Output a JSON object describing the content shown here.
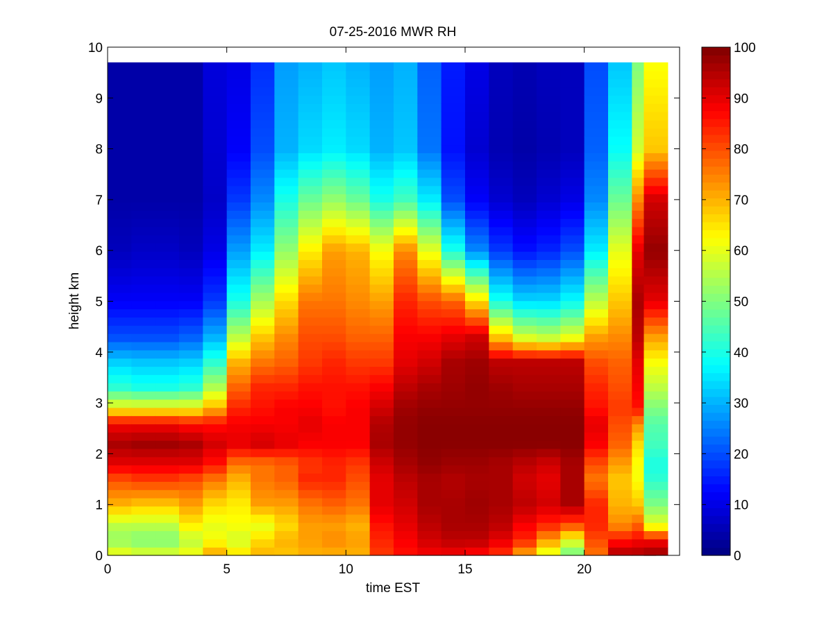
{
  "chart_data": {
    "type": "heatmap",
    "title": "07-25-2016 MWR RH",
    "xlabel": "time EST",
    "ylabel": "height km",
    "xlim": [
      0,
      24
    ],
    "ylim": [
      0,
      10
    ],
    "xticks": [
      0,
      5,
      10,
      15,
      20
    ],
    "yticks": [
      0,
      1,
      2,
      3,
      4,
      5,
      6,
      7,
      8,
      9,
      10
    ],
    "colorbar": {
      "colormap": "jet",
      "clim": [
        0,
        100
      ],
      "ticks": [
        0,
        10,
        20,
        30,
        40,
        50,
        60,
        70,
        80,
        90,
        100
      ]
    },
    "grid": false,
    "x_bin_width_hours": 1,
    "x": [
      0.5,
      1.5,
      2.5,
      3.5,
      4.5,
      5.5,
      6.5,
      7.5,
      8.5,
      9.5,
      10.5,
      11.5,
      12.5,
      13.5,
      14.5,
      15.5,
      16.5,
      17.5,
      18.5,
      19.5,
      20.5,
      21.5,
      22.5,
      23.0
    ],
    "profiles": [
      {
        "h": [
          0,
          0.3,
          0.6,
          1.0,
          1.5,
          1.8,
          2.2,
          2.6,
          2.9,
          3.3,
          3.8,
          4.3,
          5.0,
          6.0,
          7.0,
          8.0,
          9.7
        ],
        "rh": [
          62,
          52,
          56,
          70,
          80,
          90,
          96,
          88,
          62,
          42,
          33,
          20,
          12,
          6,
          4,
          4,
          4
        ]
      },
      {
        "h": [
          0,
          0.3,
          0.6,
          1.0,
          1.5,
          1.8,
          2.2,
          2.6,
          2.9,
          3.3,
          3.8,
          4.3,
          5.0,
          6.0,
          7.0,
          8.0,
          9.7
        ],
        "rh": [
          60,
          50,
          56,
          68,
          82,
          90,
          97,
          88,
          62,
          40,
          32,
          20,
          12,
          7,
          4,
          4,
          4
        ]
      },
      {
        "h": [
          0,
          0.3,
          0.6,
          1.0,
          1.5,
          1.8,
          2.2,
          2.6,
          2.9,
          3.3,
          3.8,
          4.3,
          5.0,
          6.0,
          7.0,
          8.0,
          9.7
        ],
        "rh": [
          60,
          50,
          56,
          68,
          82,
          90,
          97,
          88,
          62,
          40,
          32,
          20,
          12,
          7,
          4,
          4,
          4
        ]
      },
      {
        "h": [
          0,
          0.3,
          0.6,
          1.0,
          1.5,
          1.8,
          2.2,
          2.6,
          2.9,
          3.3,
          3.8,
          4.3,
          5.0,
          6.0,
          7.0,
          8.0,
          9.7
        ],
        "rh": [
          62,
          56,
          64,
          72,
          80,
          90,
          96,
          86,
          62,
          42,
          33,
          22,
          12,
          6,
          4,
          4,
          4
        ]
      },
      {
        "h": [
          0,
          0.3,
          0.6,
          1.0,
          1.5,
          1.8,
          2.2,
          2.6,
          2.9,
          3.3,
          3.8,
          4.3,
          5.0,
          6.0,
          7.0,
          8.0,
          9.7
        ],
        "rh": [
          72,
          62,
          60,
          66,
          76,
          86,
          92,
          86,
          70,
          55,
          42,
          30,
          18,
          10,
          7,
          8,
          9
        ]
      },
      {
        "h": [
          0,
          0.3,
          0.6,
          1.0,
          1.5,
          1.8,
          2.2,
          2.6,
          2.9,
          3.3,
          3.8,
          4.3,
          5.0,
          6.0,
          7.0,
          8.0,
          9.7
        ],
        "rh": [
          66,
          58,
          62,
          64,
          70,
          76,
          90,
          88,
          84,
          78,
          70,
          56,
          40,
          28,
          18,
          12,
          10
        ]
      },
      {
        "h": [
          0,
          0.3,
          0.6,
          1.0,
          1.5,
          1.8,
          2.2,
          2.6,
          2.9,
          3.3,
          3.8,
          4.3,
          5.0,
          6.0,
          7.0,
          8.0,
          9.7
        ],
        "rh": [
          70,
          66,
          60,
          72,
          76,
          76,
          92,
          88,
          86,
          84,
          76,
          68,
          54,
          36,
          26,
          20,
          17
        ]
      },
      {
        "h": [
          0,
          0.3,
          0.6,
          1.0,
          1.5,
          1.8,
          2.2,
          2.6,
          2.9,
          3.3,
          3.8,
          4.3,
          5.0,
          6.0,
          7.0,
          8.0,
          9.7
        ],
        "rh": [
          68,
          70,
          66,
          72,
          78,
          78,
          90,
          88,
          88,
          84,
          78,
          74,
          66,
          52,
          40,
          30,
          28
        ]
      },
      {
        "h": [
          0,
          0.3,
          0.6,
          1.0,
          1.5,
          1.8,
          2.2,
          2.6,
          2.9,
          3.3,
          3.8,
          4.3,
          5.0,
          6.0,
          7.0,
          8.0,
          9.7
        ],
        "rh": [
          70,
          72,
          72,
          76,
          84,
          82,
          88,
          90,
          88,
          86,
          82,
          80,
          76,
          64,
          48,
          34,
          30
        ]
      },
      {
        "h": [
          0,
          0.3,
          0.6,
          1.0,
          1.5,
          1.8,
          2.2,
          2.6,
          2.9,
          3.3,
          3.8,
          4.3,
          5.0,
          6.0,
          7.0,
          8.0,
          9.7
        ],
        "rh": [
          70,
          74,
          72,
          78,
          84,
          84,
          88,
          88,
          86,
          86,
          84,
          80,
          76,
          72,
          52,
          36,
          32
        ]
      },
      {
        "h": [
          0,
          0.3,
          0.6,
          1.0,
          1.5,
          1.8,
          2.2,
          2.6,
          2.9,
          3.3,
          3.8,
          4.3,
          5.0,
          6.0,
          7.0,
          8.0,
          9.7
        ],
        "rh": [
          70,
          72,
          70,
          76,
          80,
          82,
          88,
          88,
          88,
          86,
          82,
          78,
          74,
          70,
          48,
          34,
          30
        ]
      },
      {
        "h": [
          0,
          0.3,
          0.6,
          1.0,
          1.5,
          1.8,
          2.2,
          2.6,
          2.9,
          3.3,
          3.8,
          4.3,
          5.0,
          6.0,
          7.0,
          8.0,
          9.7
        ],
        "rh": [
          82,
          84,
          86,
          90,
          90,
          92,
          96,
          95,
          92,
          88,
          82,
          78,
          72,
          62,
          40,
          30,
          28
        ]
      },
      {
        "h": [
          0,
          0.3,
          0.6,
          1.0,
          1.5,
          1.8,
          2.2,
          2.6,
          2.9,
          3.3,
          3.8,
          4.3,
          5.0,
          6.0,
          7.0,
          8.0,
          9.7
        ],
        "rh": [
          86,
          88,
          90,
          92,
          94,
          96,
          98,
          98,
          97,
          94,
          90,
          88,
          84,
          74,
          44,
          32,
          30
        ]
      },
      {
        "h": [
          0,
          0.3,
          0.6,
          1.0,
          1.5,
          1.8,
          2.2,
          2.6,
          2.9,
          3.3,
          3.8,
          4.3,
          5.0,
          6.0,
          7.0,
          8.0,
          9.7
        ],
        "rh": [
          88,
          92,
          94,
          96,
          96,
          98,
          99,
          99,
          98,
          96,
          92,
          88,
          80,
          60,
          36,
          24,
          22
        ]
      },
      {
        "h": [
          0,
          0.3,
          0.6,
          1.0,
          1.5,
          1.8,
          2.2,
          2.6,
          2.9,
          3.3,
          3.8,
          4.3,
          5.0,
          6.0,
          7.0,
          8.0,
          9.7
        ],
        "rh": [
          88,
          94,
          96,
          96,
          95,
          97,
          99,
          99,
          98,
          97,
          96,
          90,
          78,
          40,
          20,
          14,
          15
        ]
      },
      {
        "h": [
          0,
          0.3,
          0.6,
          1.0,
          1.5,
          1.8,
          2.2,
          2.6,
          2.9,
          3.3,
          3.8,
          4.3,
          5.0,
          6.0,
          7.0,
          8.0,
          9.7
        ],
        "rh": [
          86,
          94,
          96,
          97,
          96,
          97,
          99,
          99,
          98,
          98,
          97,
          92,
          66,
          26,
          12,
          8,
          10
        ]
      },
      {
        "h": [
          0,
          0.3,
          0.6,
          1.0,
          1.5,
          1.8,
          2.2,
          2.6,
          2.9,
          3.3,
          3.8,
          4.3,
          5.0,
          6.0,
          7.0,
          8.0,
          9.7
        ],
        "rh": [
          82,
          90,
          94,
          96,
          96,
          96,
          99,
          99,
          98,
          97,
          94,
          68,
          40,
          18,
          8,
          5,
          6
        ]
      },
      {
        "h": [
          0,
          0.3,
          0.6,
          1.0,
          1.5,
          1.8,
          2.2,
          2.6,
          2.9,
          3.3,
          3.8,
          4.3,
          5.0,
          6.0,
          7.0,
          8.0,
          9.7
        ],
        "rh": [
          70,
          84,
          88,
          94,
          92,
          94,
          99,
          99,
          98,
          96,
          94,
          58,
          34,
          14,
          6,
          4,
          5
        ]
      },
      {
        "h": [
          0,
          0.3,
          0.6,
          1.0,
          1.5,
          1.8,
          2.2,
          2.6,
          2.9,
          3.3,
          3.8,
          4.3,
          5.0,
          6.0,
          7.0,
          8.0,
          9.7
        ],
        "rh": [
          58,
          72,
          84,
          92,
          90,
          92,
          99,
          99,
          98,
          96,
          94,
          56,
          34,
          16,
          8,
          5,
          6
        ]
      },
      {
        "h": [
          0,
          0.3,
          0.6,
          1.0,
          1.5,
          1.8,
          2.2,
          2.6,
          2.9,
          3.3,
          3.8,
          4.3,
          5.0,
          6.0,
          7.0,
          8.0,
          9.7
        ],
        "rh": [
          48,
          60,
          80,
          96,
          96,
          96,
          99,
          99,
          98,
          96,
          94,
          60,
          38,
          20,
          10,
          6,
          6
        ]
      },
      {
        "h": [
          0,
          0.3,
          0.6,
          1.0,
          1.5,
          1.8,
          2.2,
          2.6,
          2.9,
          3.3,
          3.8,
          4.3,
          5.0,
          6.0,
          7.0,
          8.0,
          9.7
        ],
        "rh": [
          76,
          80,
          84,
          84,
          76,
          80,
          88,
          90,
          86,
          84,
          80,
          72,
          56,
          36,
          26,
          22,
          20
        ]
      },
      {
        "h": [
          0,
          0.3,
          0.6,
          1.0,
          1.5,
          1.8,
          2.2,
          2.6,
          2.9,
          3.3,
          3.8,
          4.3,
          5.0,
          6.0,
          7.0,
          8.0,
          9.7
        ],
        "rh": [
          96,
          86,
          74,
          70,
          68,
          72,
          78,
          80,
          82,
          80,
          78,
          74,
          68,
          60,
          48,
          38,
          32
        ]
      },
      {
        "h": [
          0,
          0.3,
          0.6,
          1.0,
          1.5,
          1.8,
          2.2,
          2.6,
          2.9,
          3.3,
          3.8,
          4.3,
          5.0,
          6.0,
          7.0,
          8.0,
          9.7
        ],
        "rh": [
          96,
          88,
          78,
          68,
          62,
          62,
          66,
          74,
          86,
          88,
          90,
          94,
          96,
          90,
          74,
          58,
          50
        ]
      },
      {
        "h": [
          0,
          0.3,
          0.6,
          1.0,
          1.5,
          1.8,
          2.2,
          2.6,
          2.9,
          3.3,
          3.8,
          4.3,
          5.0,
          6.0,
          7.0,
          8.0,
          9.7
        ],
        "rh": [
          98,
          88,
          60,
          50,
          42,
          40,
          44,
          46,
          50,
          56,
          62,
          72,
          90,
          98,
          92,
          68,
          62
        ]
      }
    ]
  }
}
